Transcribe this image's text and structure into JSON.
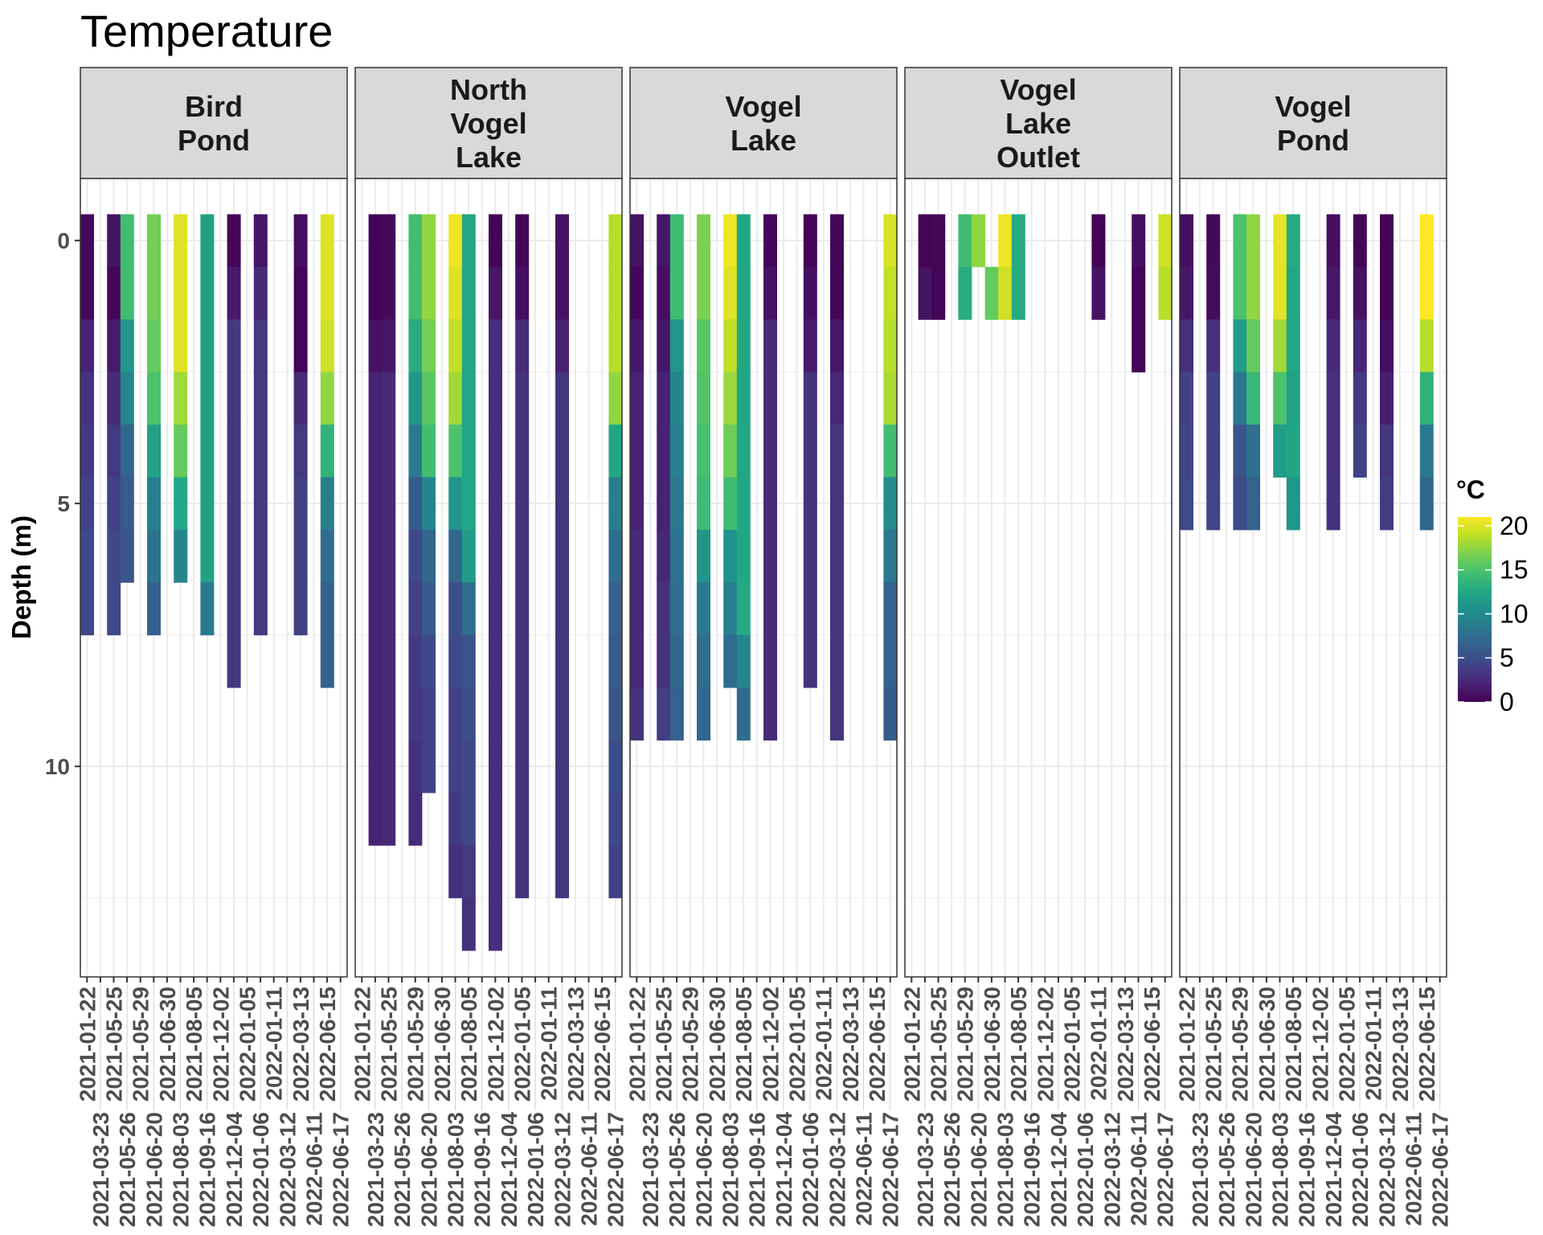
{
  "chart_data": {
    "type": "heatmap",
    "title": "Temperature",
    "xlabel": "",
    "ylabel": "Depth (m)",
    "y_ticks": [
      0,
      5,
      10
    ],
    "y_reversed": true,
    "grid": true,
    "legend": {
      "title": "°C",
      "placement": "right",
      "colormap": "viridis",
      "limits": [
        0,
        21
      ],
      "ticks": [
        0,
        5,
        10,
        15,
        20
      ]
    },
    "dates": [
      "2021-01-22",
      "2021-03-23",
      "2021-05-25",
      "2021-05-26",
      "2021-05-29",
      "2021-06-20",
      "2021-06-30",
      "2021-08-03",
      "2021-08-05",
      "2021-09-16",
      "2021-12-02",
      "2021-12-04",
      "2022-01-05",
      "2022-01-06",
      "2022-01-11",
      "2022-03-12",
      "2022-03-13",
      "2022-06-11",
      "2022-06-15",
      "2022-06-17"
    ],
    "depth_start_m": 0,
    "facets": [
      {
        "name": "Bird Pond",
        "lines": [
          "Bird",
          "Pond"
        ],
        "profiles": [
          {
            "date": "2021-01-22",
            "temps": [
              0.5,
              0.5,
              2,
              3,
              3.5,
              4,
              4.5,
              4.5
            ]
          },
          {
            "date": "2021-05-25",
            "temps": [
              1,
              0.3,
              1.5,
              2.5,
              3.5,
              4,
              4.5,
              4.5
            ]
          },
          {
            "date": "2021-05-26",
            "temps": [
              14.5,
              14.5,
              11,
              9.5,
              7,
              6,
              5.5
            ]
          },
          {
            "date": "2021-06-20",
            "temps": [
              16.5,
              16.5,
              16,
              15,
              12,
              9,
              8,
              6.5
            ]
          },
          {
            "date": "2021-08-03",
            "temps": [
              20,
              20,
              20,
              18,
              16,
              12.5,
              9.5
            ]
          },
          {
            "date": "2021-09-16",
            "temps": [
              12,
              12,
              12,
              12,
              12,
              12,
              12,
              8.5
            ]
          },
          {
            "date": "2021-12-04",
            "temps": [
              0.3,
              1.5,
              3.5,
              3.5,
              3.5,
              3.5,
              3.5,
              3.5,
              3.5
            ]
          },
          {
            "date": "2022-01-06",
            "temps": [
              1.2,
              2.5,
              3.5,
              3.5,
              3.5,
              3.5,
              3.5,
              3.5
            ]
          },
          {
            "date": "2022-03-13",
            "temps": [
              0.8,
              0.2,
              0.2,
              2.5,
              3.5,
              4,
              4,
              4
            ]
          },
          {
            "date": "2022-06-15",
            "temps": [
              20,
              20,
              19.5,
              17.5,
              13.5,
              9,
              7.5,
              6.5,
              6.5
            ]
          }
        ]
      },
      {
        "name": "North Vogel Lake",
        "lines": [
          "North",
          "Vogel",
          "Lake"
        ],
        "profiles": [
          {
            "date": "2021-03-23",
            "temps": [
              0.2,
              0.2,
              1,
              2,
              2,
              2,
              2,
              2,
              2,
              2,
              2,
              2
            ]
          },
          {
            "date": "2021-05-25",
            "temps": [
              0.5,
              0.5,
              1.3,
              2.4,
              2.4,
              2.4,
              2.4,
              2.4,
              2.4,
              2.4,
              2.4,
              2.4
            ]
          },
          {
            "date": "2021-05-29",
            "temps": [
              14.5,
              14.5,
              13,
              11,
              8.5,
              6,
              4.5,
              4,
              3.5,
              3.5,
              3,
              2.5
            ]
          },
          {
            "date": "2021-06-20",
            "temps": [
              17.5,
              17.5,
              16.5,
              15.5,
              14.5,
              9.5,
              7,
              6,
              4.5,
              4,
              4
            ]
          },
          {
            "date": "2021-08-03",
            "temps": [
              20.5,
              20,
              19,
              18,
              15,
              11,
              7,
              5,
              4.5,
              4,
              4,
              3.5,
              3
            ]
          },
          {
            "date": "2021-08-05",
            "temps": [
              12.5,
              12.5,
              12.5,
              12.5,
              12.5,
              12.5,
              11.5,
              7.5,
              5.5,
              5,
              4.5,
              4.5,
              3.5,
              3
            ]
          },
          {
            "date": "2021-12-02",
            "temps": [
              0.1,
              1.3,
              2.8,
              2.8,
              2.8,
              2.8,
              2.8,
              2.8,
              2.8,
              2.8,
              2.8,
              2.8,
              2.8,
              2.8
            ]
          },
          {
            "date": "2022-01-05",
            "temps": [
              0.3,
              0.8,
              2.5,
              3,
              3,
              3,
              3,
              3,
              3,
              3,
              3,
              3,
              3
            ]
          },
          {
            "date": "2022-03-12",
            "temps": [
              1,
              1,
              2,
              3.2,
              3.2,
              3.2,
              3.2,
              3.2,
              3.2,
              3.2,
              3.2,
              3.2,
              3.2
            ]
          },
          {
            "date": "2022-06-17",
            "temps": [
              18.7,
              18.7,
              18.7,
              17.5,
              12.5,
              9,
              7.5,
              6.5,
              6,
              5.5,
              5,
              4.5,
              4
            ]
          }
        ]
      },
      {
        "name": "Vogel Lake",
        "lines": [
          "Vogel",
          "Lake"
        ],
        "profiles": [
          {
            "date": "2021-01-22",
            "temps": [
              1,
              0.3,
              1.3,
              2,
              2,
              2,
              2.5,
              2.5,
              2.5,
              3
            ]
          },
          {
            "date": "2021-05-25",
            "temps": [
              1.3,
              0.8,
              1.3,
              2,
              2,
              2,
              2.3,
              3,
              3,
              3.8
            ]
          },
          {
            "date": "2021-05-26",
            "temps": [
              14.5,
              14.5,
              11,
              9.5,
              9,
              8.3,
              8,
              7.5,
              7,
              6.5
            ]
          },
          {
            "date": "2021-06-20",
            "temps": [
              16.8,
              16.8,
              15.5,
              15.3,
              14.8,
              14.3,
              11,
              8.5,
              7.5,
              7
            ]
          },
          {
            "date": "2021-08-03",
            "temps": [
              20.5,
              20,
              19,
              17.8,
              16.3,
              14.5,
              10.5,
              9,
              7.5
            ]
          },
          {
            "date": "2021-08-05",
            "temps": [
              12.5,
              12.5,
              12.5,
              12.5,
              12.5,
              12.5,
              12.5,
              12.8,
              9.5,
              7.5
            ]
          },
          {
            "date": "2021-12-02",
            "temps": [
              0.3,
              1,
              2.5,
              2.5,
              2.5,
              2.5,
              2.5,
              2.5,
              2.5,
              2.5
            ]
          },
          {
            "date": "2022-01-06",
            "temps": [
              0.1,
              0.8,
              1.5,
              3,
              3,
              3,
              3,
              3,
              3
            ]
          },
          {
            "date": "2022-03-12",
            "temps": [
              0.3,
              0.3,
              1.3,
              2.3,
              3.2,
              3.2,
              3.2,
              3.2,
              3.2,
              3.2
            ]
          },
          {
            "date": "2022-06-17",
            "temps": [
              19.8,
              19,
              18.7,
              18.3,
              14.5,
              10,
              8.5,
              6.5,
              6.5,
              6
            ]
          }
        ]
      },
      {
        "name": "Vogel Lake Outlet",
        "lines": [
          "Vogel",
          "Lake",
          "Outlet"
        ],
        "profiles": [
          {
            "date": "2021-03-23",
            "temps": [
              0.1,
              1
            ]
          },
          {
            "date": "2021-05-25",
            "temps": [
              0.3,
              0.2
            ]
          },
          {
            "date": "2021-05-29",
            "temps": [
              14.5,
              13
            ]
          },
          {
            "date": "2021-06-20",
            "temps": [
              17.5
            ]
          },
          {
            "date": "2021-06-30",
            "temps": [
              null,
              16
            ]
          },
          {
            "date": "2021-08-03",
            "temps": [
              20.5,
              19.5
            ]
          },
          {
            "date": "2021-08-05",
            "temps": [
              12.8,
              12.8
            ]
          },
          {
            "date": "2022-01-11",
            "temps": [
              0.1,
              1
            ]
          },
          {
            "date": "2022-06-11",
            "temps": [
              0.8,
              0.2,
              0.2
            ]
          },
          {
            "date": "2022-06-17",
            "temps": [
              19.5,
              18.7
            ]
          }
        ]
      },
      {
        "name": "Vogel Pond",
        "lines": [
          "Vogel",
          "Pond"
        ],
        "profiles": [
          {
            "date": "2021-01-22",
            "temps": [
              0.8,
              1.3,
              2.8,
              4,
              4.3,
              4.5
            ]
          },
          {
            "date": "2021-05-25",
            "temps": [
              0.5,
              0.6,
              2.8,
              4,
              4,
              4.3
            ]
          },
          {
            "date": "2021-05-29",
            "temps": [
              15,
              15,
              11.5,
              8.5,
              5.5,
              4.8
            ]
          },
          {
            "date": "2021-06-20",
            "temps": [
              17.5,
              17.5,
              16,
              14,
              7.8,
              6.5
            ]
          },
          {
            "date": "2021-08-03",
            "temps": [
              20.2,
              20.2,
              18,
              15,
              11.5
            ]
          },
          {
            "date": "2021-08-05",
            "temps": [
              12.8,
              12.5,
              12.2,
              12,
              12.3,
              11
            ]
          },
          {
            "date": "2021-12-04",
            "temps": [
              0.8,
              1.3,
              2.5,
              2.8,
              2.8,
              3
            ]
          },
          {
            "date": "2022-01-06",
            "temps": [
              0.1,
              1,
              2.3,
              3.5,
              4
            ]
          },
          {
            "date": "2022-03-12",
            "temps": [
              0.1,
              0.1,
              0.8,
              1.8,
              3.3,
              3.8
            ]
          },
          {
            "date": "2022-06-15",
            "temps": [
              21,
              21,
              18.7,
              13.5,
              8.5,
              7
            ]
          }
        ]
      }
    ]
  }
}
